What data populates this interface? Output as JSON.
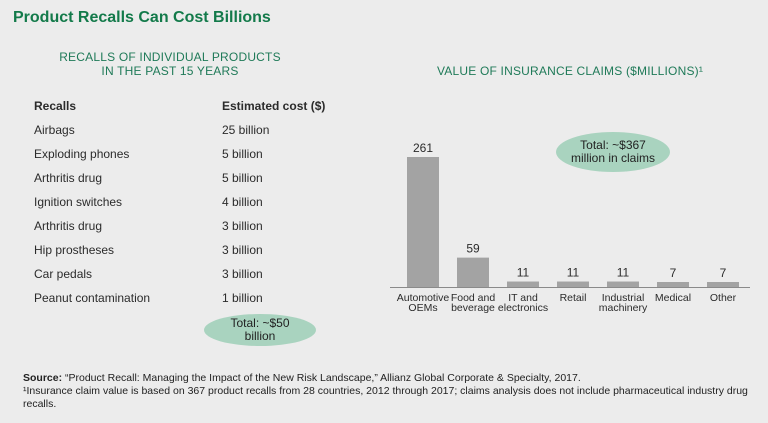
{
  "title": "Product Recalls Can Cost Billions",
  "left_panel": {
    "heading_line1": "RECALLS OF INDIVIDUAL PRODUCTS",
    "heading_line2": "IN THE PAST 15 YEARS",
    "col_recalls": "Recalls",
    "col_cost": "Estimated cost ($)",
    "rows": [
      {
        "name": "Airbags",
        "cost": "25 billion"
      },
      {
        "name": "Exploding phones",
        "cost": "5 billion"
      },
      {
        "name": "Arthritis drug",
        "cost": "5 billion"
      },
      {
        "name": "Ignition switches",
        "cost": "4 billion"
      },
      {
        "name": "Arthritis drug",
        "cost": "3 billion"
      },
      {
        "name": "Hip prostheses",
        "cost": "3 billion"
      },
      {
        "name": "Car pedals",
        "cost": "3 billion"
      },
      {
        "name": "Peanut contamination",
        "cost": "1 billion"
      }
    ],
    "total_line1": "Total: ~$50",
    "total_line2": "billion"
  },
  "right_panel": {
    "heading": "VALUE OF INSURANCE CLAIMS ($MILLIONS)¹",
    "total_line1": "Total: ~$367",
    "total_line2": "million in claims"
  },
  "chart_data": {
    "type": "bar",
    "title": "VALUE OF INSURANCE CLAIMS ($MILLIONS)¹",
    "categories": [
      [
        "Automotive",
        "OEMs"
      ],
      [
        "Food and",
        "beverage"
      ],
      [
        "IT and",
        "electronics"
      ],
      [
        "Retail"
      ],
      [
        "Industrial",
        "machinery"
      ],
      [
        "Medical"
      ],
      [
        "Other"
      ]
    ],
    "values": [
      261,
      59,
      11,
      11,
      11,
      7,
      7
    ],
    "ylim": [
      0,
      261
    ],
    "grid": false,
    "bar_color": "#a3a3a3"
  },
  "footer": {
    "source_label": "Source:",
    "source_text": " “Product Recall: Managing the Impact of the New Risk Landscape,” Allianz Global Corporate & Specialty, 2017.",
    "note": "¹Insurance claim value is based on 367 product recalls from 28 countries, 2012 through 2017; claims analysis does not include pharmaceutical industry drug recalls."
  }
}
